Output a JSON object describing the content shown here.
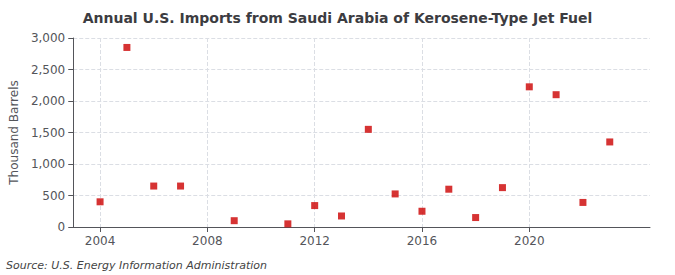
{
  "chart_data": {
    "type": "scatter",
    "title": "Annual U.S. Imports from Saudi Arabia of Kerosene-Type Jet Fuel",
    "ylabel": "Thousand Barrels",
    "annotation": "Source: U.S. Energy Information Administration",
    "x": [
      2004,
      2005,
      2006,
      2007,
      2009,
      2011,
      2012,
      2013,
      2014,
      2015,
      2016,
      2017,
      2018,
      2019,
      2020,
      2021,
      2022,
      2023
    ],
    "values": [
      400,
      2850,
      650,
      650,
      100,
      50,
      340,
      175,
      1550,
      525,
      250,
      600,
      150,
      625,
      2225,
      2100,
      390,
      1350
    ],
    "color": "#cc0000",
    "marker": "square",
    "xlim": [
      2003.0,
      2024.5
    ],
    "xticks": [
      2004,
      2008,
      2012,
      2016,
      2020
    ],
    "ylim": [
      0,
      3000
    ],
    "yticks": [
      0,
      500,
      {
        "value": 1000,
        "label": "1,000"
      },
      {
        "value": 1500,
        "label": "1,500"
      },
      {
        "value": 2000,
        "label": "2,000"
      },
      {
        "value": 2500,
        "label": "2,500"
      },
      {
        "value": 3000,
        "label": "3,000"
      }
    ],
    "grid": true
  }
}
